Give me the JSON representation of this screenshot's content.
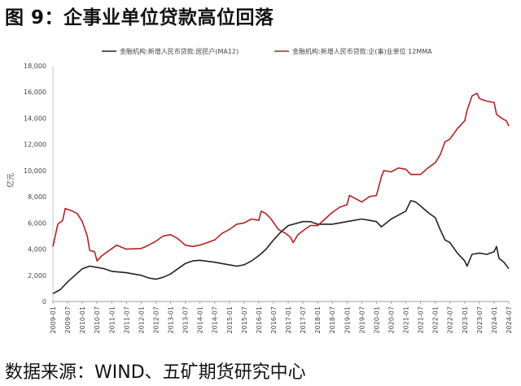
{
  "figure": {
    "title": "图 9：企事业单位贷款高位回落",
    "source": "数据来源：WIND、五矿期货研究中心"
  },
  "chart_data": {
    "type": "line",
    "ylabel": "亿元",
    "ylim": [
      0,
      18000
    ],
    "yticks": [
      0,
      2000,
      4000,
      6000,
      8000,
      10000,
      12000,
      14000,
      16000,
      18000
    ],
    "ytick_labels": [
      "0",
      "2,000",
      "4,000",
      "6,000",
      "8,000",
      "10,000",
      "12,000",
      "14,000",
      "16,000",
      "18,000"
    ],
    "xticks": [
      "2009-01",
      "2009-07",
      "2010-01",
      "2010-07",
      "2011-01",
      "2011-07",
      "2012-01",
      "2012-07",
      "2013-01",
      "2013-07",
      "2014-01",
      "2014-07",
      "2015-01",
      "2015-07",
      "2016-01",
      "2016-07",
      "2017-01",
      "2017-07",
      "2018-01",
      "2018-07",
      "2019-01",
      "2019-07",
      "2020-01",
      "2020-07",
      "2021-01",
      "2021-07",
      "2022-01",
      "2022-07",
      "2023-01",
      "2023-07",
      "2024-01",
      "2024-07"
    ],
    "legend_position": "top",
    "series": [
      {
        "name": "金融机构:新增人民币贷款:居民户(MA12)",
        "color": "#222222",
        "points": [
          [
            "2009-01",
            600
          ],
          [
            "2009-04",
            900
          ],
          [
            "2009-07",
            1500
          ],
          [
            "2009-10",
            2000
          ],
          [
            "2010-01",
            2500
          ],
          [
            "2010-04",
            2700
          ],
          [
            "2010-07",
            2600
          ],
          [
            "2010-10",
            2500
          ],
          [
            "2011-01",
            2300
          ],
          [
            "2011-07",
            2200
          ],
          [
            "2012-01",
            2000
          ],
          [
            "2012-04",
            1800
          ],
          [
            "2012-07",
            1700
          ],
          [
            "2012-10",
            1850
          ],
          [
            "2013-01",
            2100
          ],
          [
            "2013-04",
            2500
          ],
          [
            "2013-07",
            2900
          ],
          [
            "2013-10",
            3100
          ],
          [
            "2014-01",
            3150
          ],
          [
            "2014-07",
            3000
          ],
          [
            "2015-01",
            2800
          ],
          [
            "2015-04",
            2700
          ],
          [
            "2015-07",
            2800
          ],
          [
            "2015-10",
            3100
          ],
          [
            "2016-01",
            3500
          ],
          [
            "2016-04",
            4000
          ],
          [
            "2016-07",
            4700
          ],
          [
            "2016-10",
            5300
          ],
          [
            "2017-01",
            5800
          ],
          [
            "2017-07",
            6100
          ],
          [
            "2017-10",
            6100
          ],
          [
            "2018-01",
            5900
          ],
          [
            "2018-07",
            5900
          ],
          [
            "2018-10",
            6000
          ],
          [
            "2019-01",
            6100
          ],
          [
            "2019-04",
            6200
          ],
          [
            "2019-07",
            6300
          ],
          [
            "2019-10",
            6200
          ],
          [
            "2020-01",
            6100
          ],
          [
            "2020-03",
            5700
          ],
          [
            "2020-07",
            6300
          ],
          [
            "2020-10",
            6600
          ],
          [
            "2021-01",
            6900
          ],
          [
            "2021-03",
            7700
          ],
          [
            "2021-05",
            7600
          ],
          [
            "2021-07",
            7300
          ],
          [
            "2021-10",
            6800
          ],
          [
            "2022-01",
            6400
          ],
          [
            "2022-03",
            5500
          ],
          [
            "2022-05",
            4700
          ],
          [
            "2022-07",
            4500
          ],
          [
            "2022-10",
            3700
          ],
          [
            "2023-01",
            3100
          ],
          [
            "2023-02",
            2700
          ],
          [
            "2023-04",
            3600
          ],
          [
            "2023-07",
            3700
          ],
          [
            "2023-10",
            3600
          ],
          [
            "2024-01",
            3800
          ],
          [
            "2024-02",
            4200
          ],
          [
            "2024-03",
            3300
          ],
          [
            "2024-05",
            3000
          ],
          [
            "2024-07",
            2500
          ]
        ]
      },
      {
        "name": "金融机构:新增人民币贷款:企(事)业单位 12MMA",
        "color": "#b22222",
        "points": [
          [
            "2009-01",
            4200
          ],
          [
            "2009-03",
            5900
          ],
          [
            "2009-05",
            6200
          ],
          [
            "2009-06",
            7100
          ],
          [
            "2009-09",
            6900
          ],
          [
            "2009-11",
            6700
          ],
          [
            "2010-01",
            6100
          ],
          [
            "2010-03",
            5000
          ],
          [
            "2010-04",
            3900
          ],
          [
            "2010-06",
            3800
          ],
          [
            "2010-07",
            3100
          ],
          [
            "2010-09",
            3500
          ],
          [
            "2010-12",
            3900
          ],
          [
            "2011-03",
            4300
          ],
          [
            "2011-07",
            4000
          ],
          [
            "2012-01",
            4050
          ],
          [
            "2012-03",
            4200
          ],
          [
            "2012-07",
            4600
          ],
          [
            "2012-10",
            5000
          ],
          [
            "2013-01",
            5100
          ],
          [
            "2013-04",
            4800
          ],
          [
            "2013-07",
            4300
          ],
          [
            "2013-10",
            4200
          ],
          [
            "2014-01",
            4300
          ],
          [
            "2014-04",
            4500
          ],
          [
            "2014-07",
            4700
          ],
          [
            "2014-10",
            5200
          ],
          [
            "2015-01",
            5500
          ],
          [
            "2015-04",
            5900
          ],
          [
            "2015-07",
            6000
          ],
          [
            "2015-10",
            6300
          ],
          [
            "2016-01",
            6200
          ],
          [
            "2016-02",
            6900
          ],
          [
            "2016-04",
            6700
          ],
          [
            "2016-06",
            6300
          ],
          [
            "2016-09",
            5500
          ],
          [
            "2016-12",
            5200
          ],
          [
            "2017-02",
            4900
          ],
          [
            "2017-03",
            4500
          ],
          [
            "2017-05",
            5100
          ],
          [
            "2017-07",
            5400
          ],
          [
            "2017-10",
            5800
          ],
          [
            "2018-01",
            5800
          ],
          [
            "2018-04",
            6300
          ],
          [
            "2018-07",
            6800
          ],
          [
            "2018-10",
            7200
          ],
          [
            "2019-01",
            7400
          ],
          [
            "2019-02",
            8100
          ],
          [
            "2019-04",
            7900
          ],
          [
            "2019-07",
            7600
          ],
          [
            "2019-10",
            8000
          ],
          [
            "2020-01",
            8100
          ],
          [
            "2020-03",
            9500
          ],
          [
            "2020-04",
            10000
          ],
          [
            "2020-07",
            9900
          ],
          [
            "2020-10",
            10200
          ],
          [
            "2021-01",
            10100
          ],
          [
            "2021-03",
            9700
          ],
          [
            "2021-07",
            9700
          ],
          [
            "2021-10",
            10200
          ],
          [
            "2022-01",
            10600
          ],
          [
            "2022-03",
            11200
          ],
          [
            "2022-05",
            12200
          ],
          [
            "2022-07",
            12400
          ],
          [
            "2022-10",
            13200
          ],
          [
            "2023-01",
            13800
          ],
          [
            "2023-02",
            14600
          ],
          [
            "2023-04",
            15700
          ],
          [
            "2023-06",
            15900
          ],
          [
            "2023-07",
            15500
          ],
          [
            "2023-10",
            15300
          ],
          [
            "2024-01",
            15200
          ],
          [
            "2024-02",
            14300
          ],
          [
            "2024-04",
            14000
          ],
          [
            "2024-06",
            13800
          ],
          [
            "2024-07",
            13400
          ]
        ]
      }
    ]
  }
}
